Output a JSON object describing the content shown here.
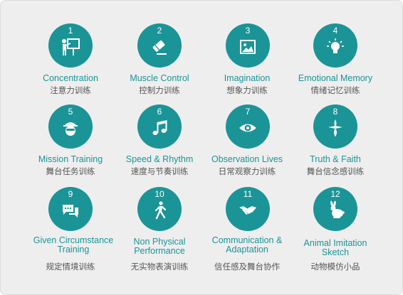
{
  "items": [
    {
      "number": "1",
      "title_en": "Concentration",
      "title_zh": "注意力训练",
      "icon": "presentation-board-icon"
    },
    {
      "number": "2",
      "title_en": "Muscle Control",
      "title_zh": "控制力训练",
      "icon": "eraser-icon"
    },
    {
      "number": "3",
      "title_en": "Imagination",
      "title_zh": "想象力训练",
      "icon": "picture-icon"
    },
    {
      "number": "4",
      "title_en": "Emotional Memory",
      "title_zh": "情绪记忆训练",
      "icon": "lightbulb-icon"
    },
    {
      "number": "5",
      "title_en": "Mission Training",
      "title_zh": "舞台任务训练",
      "icon": "spy-icon"
    },
    {
      "number": "6",
      "title_en": "Speed & Rhythm",
      "title_zh": "速度与节奏训练",
      "icon": "music-note-icon"
    },
    {
      "number": "7",
      "title_en": "Observation Lives",
      "title_zh": "日常观察力训练",
      "icon": "eye-icon"
    },
    {
      "number": "8",
      "title_en": "Truth & Faith",
      "title_zh": "舞台信念感训练",
      "icon": "spark-icon"
    },
    {
      "number": "9",
      "title_en": "Given Circumstance Training",
      "title_zh": "规定情境训练",
      "icon": "chat-bubbles-icon"
    },
    {
      "number": "10",
      "title_en": "Non Physical Performance",
      "title_zh": "无实物表演训练",
      "icon": "walking-person-icon"
    },
    {
      "number": "11",
      "title_en": "Communication & Adaptation",
      "title_zh": "信任感及舞台协作",
      "icon": "handshake-icon"
    },
    {
      "number": "12",
      "title_en": "Animal Imitation Sketch",
      "title_zh": "动物模仿小品",
      "icon": "rabbit-icon"
    }
  ],
  "colors": {
    "accent": "#1b9497",
    "background": "#eeeeee",
    "text_zh": "#555555"
  }
}
